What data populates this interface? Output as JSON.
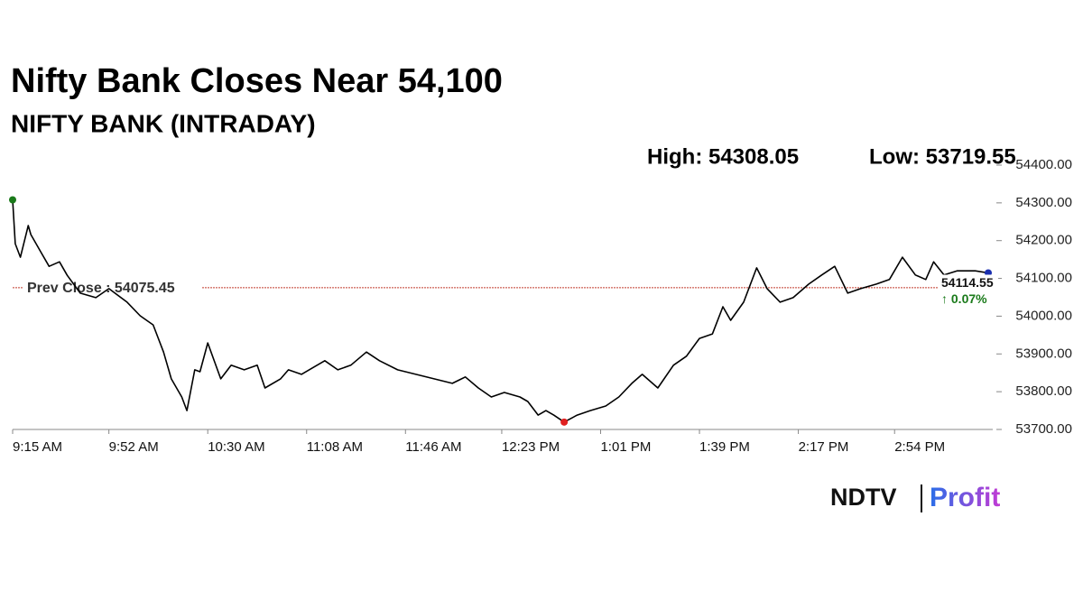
{
  "chart_data": {
    "type": "line",
    "title": "Nifty Bank Closes Near 54,100",
    "subtitle": "NIFTY BANK (INTRADAY)",
    "high_label": "High: 54308.05",
    "low_label": "Low: 53719.55",
    "prev_close": {
      "value": 54075.45,
      "label": "Prev Close : 54075.45"
    },
    "last_label": "54114.55",
    "change_label": "↑ 0.07%",
    "color": "#000000",
    "open_color": "#1a7a1a",
    "low_color": "#e02020",
    "last_color": "#1a2fb0",
    "prev_close_color": "#c0392b",
    "change_color": "#1a7a1a",
    "x": [
      555,
      556,
      558,
      561,
      562,
      566,
      569,
      573,
      576,
      581,
      587,
      592,
      599,
      604,
      609,
      613,
      616,
      620,
      622,
      625,
      627,
      630,
      635,
      639,
      644,
      649,
      652,
      658,
      661,
      666,
      672,
      675,
      680,
      685,
      691,
      696,
      703,
      710,
      717,
      724,
      729,
      734,
      739,
      744,
      750,
      753,
      757,
      760,
      763,
      767,
      772,
      777,
      783,
      788,
      793,
      797,
      803,
      809,
      814,
      819,
      824,
      828,
      831,
      836,
      841,
      845,
      850,
      855,
      861,
      866,
      871,
      876,
      881,
      887,
      892,
      897,
      902,
      906,
      909,
      913,
      918,
      925,
      930
    ],
    "values": [
      54308.05,
      54192,
      54156,
      54240,
      54216,
      54168,
      54132,
      54144,
      54108,
      54061,
      54049,
      54073,
      54037,
      54001,
      53977,
      53905,
      53834,
      53786,
      53750,
      53858,
      53853,
      53929,
      53834,
      53870,
      53858,
      53870,
      53810,
      53834,
      53858,
      53846,
      53870,
      53882,
      53858,
      53870,
      53905,
      53882,
      53858,
      53846,
      53834,
      53822,
      53839,
      53810,
      53786,
      53798,
      53786,
      53774,
      53738,
      53750,
      53738,
      53719.55,
      53738,
      53750,
      53762,
      53786,
      53822,
      53846,
      53810,
      53870,
      53894,
      53941,
      53953,
      54025,
      53989,
      54037,
      54128,
      54073,
      54037,
      54049,
      54085,
      54109,
      54132,
      54061,
      54073,
      54085,
      54097,
      54156,
      54109,
      54097,
      54144,
      54109,
      54120,
      54120,
      54114.55
    ],
    "xlim": [
      555,
      930
    ],
    "xticks": [
      {
        "value": 555,
        "label": "9:15 AM"
      },
      {
        "value": 592,
        "label": "9:52 AM"
      },
      {
        "value": 630,
        "label": "10:30 AM"
      },
      {
        "value": 668,
        "label": "11:08 AM"
      },
      {
        "value": 706,
        "label": "11:46 AM"
      },
      {
        "value": 743,
        "label": "12:23 PM"
      },
      {
        "value": 781,
        "label": "1:01 PM"
      },
      {
        "value": 819,
        "label": "1:39 PM"
      },
      {
        "value": 857,
        "label": "2:17 PM"
      },
      {
        "value": 894,
        "label": "2:54 PM"
      }
    ],
    "ylim": [
      53700,
      54400
    ],
    "yticks": [
      {
        "value": 53700,
        "label": "53700.00"
      },
      {
        "value": 53800,
        "label": "53800.00"
      },
      {
        "value": 53900,
        "label": "53900.00"
      },
      {
        "value": 54000,
        "label": "54000.00"
      },
      {
        "value": 54100,
        "label": "54100.00"
      },
      {
        "value": 54200,
        "label": "54200.00"
      },
      {
        "value": 54300,
        "label": "54300.00"
      },
      {
        "value": 54400,
        "label": "54400.00"
      }
    ]
  },
  "logo": {
    "brand": "NDTV",
    "product": "Profit"
  }
}
